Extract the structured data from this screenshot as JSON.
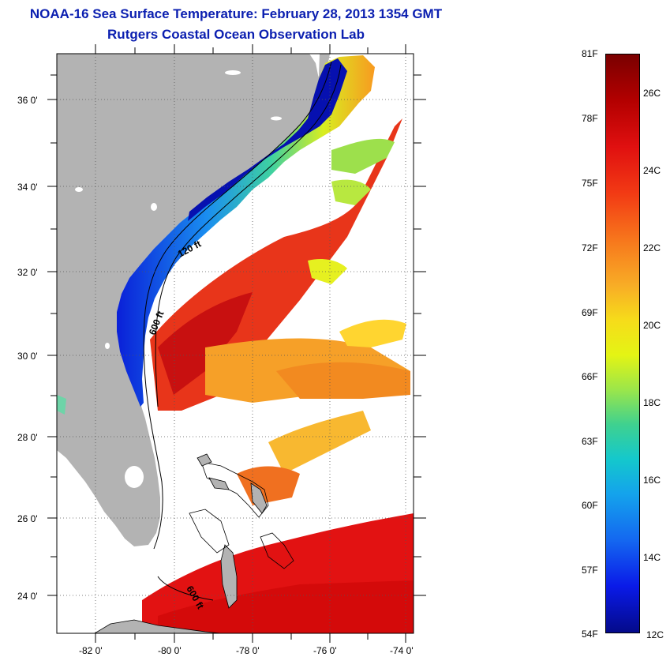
{
  "header": {
    "title": "NOAA-16 Sea Surface Temperature:  February 28, 2013 1354 GMT",
    "subtitle": "Rutgers Coastal Ocean Observation Lab"
  },
  "map": {
    "latitude_labels": [
      "36 0'",
      "34 0'",
      "32 0'",
      "30 0'",
      "28 0'",
      "26 0'",
      "24 0'"
    ],
    "longitude_labels": [
      "-82 0'",
      "-80 0'",
      "-78 0'",
      "-76 0'",
      "-74 0'"
    ],
    "isobath_labels": [
      "120 ft",
      "600 ft",
      "600 ft"
    ],
    "colors": {
      "land": "#b3b3b3",
      "cloud": "#ffffff",
      "cold": "#0a1ae8",
      "warm": "#e01010"
    }
  },
  "colorbar": {
    "fahrenheit_labels": [
      "81F",
      "78F",
      "75F",
      "72F",
      "69F",
      "66F",
      "63F",
      "60F",
      "57F",
      "54F"
    ],
    "celsius_labels": [
      "26C",
      "24C",
      "22C",
      "20C",
      "18C",
      "16C",
      "14C",
      "12C"
    ],
    "range_f": [
      54,
      81
    ],
    "range_c": [
      12,
      27.2
    ]
  }
}
